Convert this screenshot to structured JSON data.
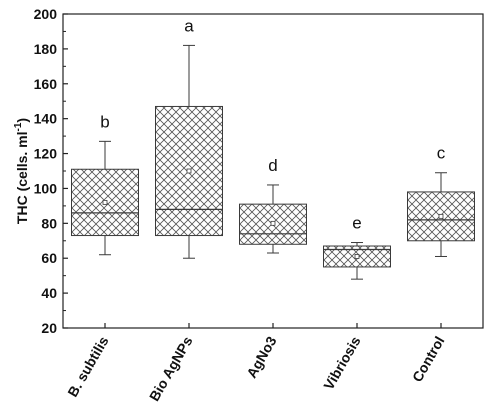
{
  "chart_data": {
    "type": "box",
    "title": "",
    "xlabel": "",
    "ylabel": "THC (cells. ml",
    "ylabel_superscript": "-1",
    "ylabel_suffix": ")",
    "ylim": [
      20,
      200
    ],
    "yticks": [
      20,
      40,
      60,
      80,
      100,
      120,
      140,
      160,
      180,
      200
    ],
    "grid": false,
    "categories": [
      "B. subtilis",
      "Bio AgNPs",
      "AgNo3",
      "Vibriosis",
      "Control"
    ],
    "letters": [
      "b",
      "a",
      "d",
      "e",
      "c"
    ],
    "boxes": [
      {
        "min": 62,
        "q1": 73,
        "median": 86,
        "q3": 111,
        "max": 127,
        "mean": 92
      },
      {
        "min": 60,
        "q1": 73,
        "median": 88,
        "q3": 147,
        "max": 182,
        "mean": 110
      },
      {
        "min": 63,
        "q1": 68,
        "median": 74,
        "q3": 91,
        "max": 102,
        "mean": 80
      },
      {
        "min": 48,
        "q1": 55,
        "median": 65,
        "q3": 67,
        "max": 69,
        "mean": 61
      },
      {
        "min": 61,
        "q1": 70,
        "median": 82,
        "q3": 98,
        "max": 109,
        "mean": 84
      }
    ],
    "box_fill": "crosshatch",
    "colors": {
      "stroke": "#3a3a3a",
      "hatch": "#555555",
      "text": "#111111"
    }
  }
}
